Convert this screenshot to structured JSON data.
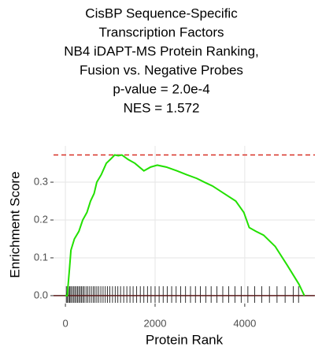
{
  "chart_data": {
    "type": "line",
    "title": [
      "CisBP Sequence-Specific",
      "Transcription Factors",
      "NB4 iDAPT-MS Protein Ranking,",
      "Fusion vs. Negative Probes",
      "p-value = 2.0e-4",
      "NES = 1.572"
    ],
    "x_label": "Protein Rank",
    "y_label": "Enrichment Score",
    "x": [
      0,
      40,
      90,
      123,
      200,
      300,
      386,
      480,
      560,
      640,
      700,
      800,
      912,
      1000,
      1100,
      1180,
      1260,
      1400,
      1550,
      1750,
      1900,
      2050,
      2250,
      2490,
      2700,
      2930,
      3100,
      3280,
      3540,
      3800,
      3980,
      4100,
      4250,
      4420,
      4680,
      4950,
      5210,
      5330
    ],
    "series": [
      {
        "color": "#22e000",
        "values": [
          0,
          0.0,
          0.07,
          0.12,
          0.15,
          0.17,
          0.2,
          0.22,
          0.25,
          0.27,
          0.3,
          0.32,
          0.35,
          0.36,
          0.372,
          0.37,
          0.372,
          0.36,
          0.35,
          0.33,
          0.34,
          0.345,
          0.34,
          0.33,
          0.32,
          0.31,
          0.3,
          0.29,
          0.27,
          0.25,
          0.22,
          0.18,
          0.17,
          0.16,
          0.13,
          0.08,
          0.03,
          0
        ]
      }
    ],
    "reference_lines": [
      {
        "value": 0.372,
        "color": "#d73027",
        "dash": true
      },
      {
        "value": 0,
        "color": "#5a1a1a",
        "dash": false
      }
    ],
    "rug_x": [
      20,
      45,
      70,
      95,
      120,
      150,
      180,
      210,
      240,
      270,
      300,
      330,
      360,
      390,
      420,
      460,
      500,
      540,
      580,
      620,
      660,
      700,
      740,
      790,
      840,
      890,
      940,
      990,
      1050,
      1110,
      1170,
      1230,
      1300,
      1370,
      1440,
      1510,
      1590,
      1670,
      1750,
      1830,
      1910,
      2000,
      2090,
      2180,
      2270,
      2370,
      2470,
      2570,
      2680,
      2790,
      2900,
      3010,
      3130,
      3250,
      3380,
      3510,
      3640,
      3780,
      3920,
      4070,
      4220,
      4380,
      4550,
      4720,
      4900,
      5080,
      5200
    ],
    "rug_color": "#000000",
    "xlim": [
      -265,
      5565
    ],
    "ylim": [
      -0.021,
      0.396
    ],
    "xticks": [
      0,
      2000,
      4000
    ],
    "yticks": [
      {
        "value": 0,
        "label": "0.0"
      },
      0.1,
      0.2,
      0.3
    ],
    "grid": true
  }
}
